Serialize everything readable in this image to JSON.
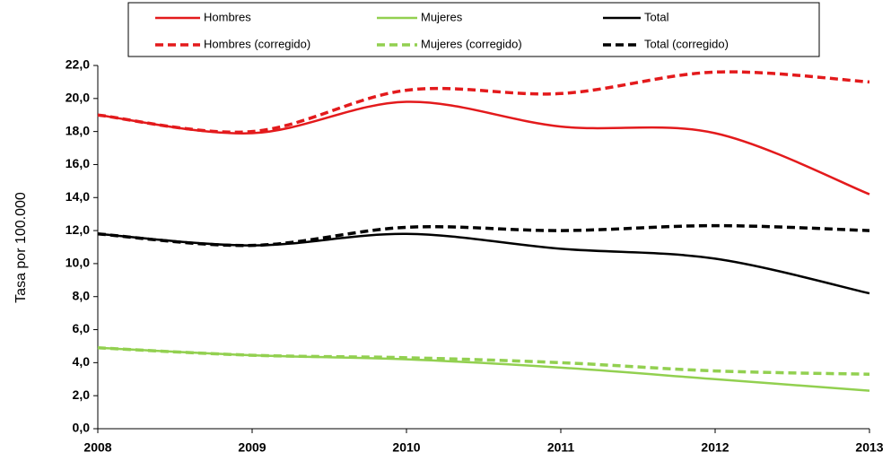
{
  "chart_data": {
    "type": "line",
    "y_label": "Tasa por 100.000",
    "x": [
      2008,
      2009,
      2010,
      2011,
      2012,
      2013
    ],
    "xlim": [
      2008,
      2013
    ],
    "xticks": [
      2008,
      2009,
      2010,
      2011,
      2012,
      2013
    ],
    "ylim": [
      0,
      22
    ],
    "yticks": [
      {
        "value": 0,
        "label": "0,0"
      },
      {
        "value": 2,
        "label": "2,0"
      },
      {
        "value": 4,
        "label": "4,0"
      },
      {
        "value": 6,
        "label": "6,0"
      },
      {
        "value": 8,
        "label": "8,0"
      },
      {
        "value": 10,
        "label": "10,0"
      },
      {
        "value": 12,
        "label": "12,0"
      },
      {
        "value": 14,
        "label": "14,0"
      },
      {
        "value": 16,
        "label": "16,0"
      },
      {
        "value": 18,
        "label": "18,0"
      },
      {
        "value": 20,
        "label": "20,0"
      },
      {
        "value": 22,
        "label": "22,0"
      }
    ],
    "series": [
      {
        "name": "Hombres",
        "color": "#e31a1c",
        "dashed": false,
        "values": [
          19.0,
          17.9,
          19.8,
          18.3,
          17.9,
          14.2
        ]
      },
      {
        "name": "Mujeres",
        "color": "#92d050",
        "dashed": false,
        "values": [
          4.9,
          4.45,
          4.2,
          3.7,
          3.0,
          2.3
        ]
      },
      {
        "name": "Total",
        "color": "#000000",
        "dashed": false,
        "values": [
          11.8,
          11.1,
          11.8,
          10.9,
          10.3,
          8.2
        ]
      },
      {
        "name": "Hombres (corregido)",
        "color": "#e31a1c",
        "dashed": true,
        "values": [
          19.0,
          18.0,
          20.5,
          20.3,
          21.6,
          21.0
        ]
      },
      {
        "name": "Mujeres (corregido)",
        "color": "#92d050",
        "dashed": true,
        "values": [
          4.9,
          4.45,
          4.3,
          4.0,
          3.5,
          3.3
        ]
      },
      {
        "name": "Total (corregido)",
        "color": "#000000",
        "dashed": true,
        "values": [
          11.8,
          11.1,
          12.2,
          12.0,
          12.3,
          12.0
        ]
      }
    ]
  }
}
